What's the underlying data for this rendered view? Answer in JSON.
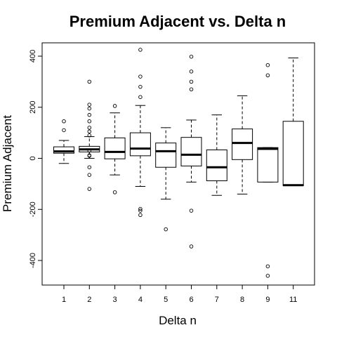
{
  "chart_data": {
    "type": "boxplot",
    "title": "Premium Adjacent vs. Delta n",
    "xlabel": "Delta n",
    "ylabel": "Premium Adjacent",
    "ylim": [
      -500,
      450
    ],
    "y_ticks": [
      -400,
      -200,
      0,
      200,
      400
    ],
    "grid": false,
    "legend": "none",
    "categories": [
      "1",
      "2",
      "3",
      "4",
      "5",
      "6",
      "7",
      "8",
      "9",
      "11"
    ],
    "boxes": [
      {
        "category": "1",
        "lower_whisker": -20,
        "q1": 20,
        "median": 27,
        "q3": 45,
        "upper_whisker": 70,
        "outliers": [
          110,
          145
        ]
      },
      {
        "category": "2",
        "lower_whisker": 0,
        "q1": 25,
        "median": 35,
        "q3": 47,
        "upper_whisker": 85,
        "outliers": [
          300,
          210,
          195,
          170,
          145,
          120,
          105,
          90,
          30,
          12,
          10,
          -35,
          -65,
          -120
        ]
      },
      {
        "category": "3",
        "lower_whisker": -65,
        "q1": -2,
        "median": 25,
        "q3": 80,
        "upper_whisker": 178,
        "outliers": [
          205,
          -133
        ]
      },
      {
        "category": "4",
        "lower_whisker": -110,
        "q1": 10,
        "median": 38,
        "q3": 100,
        "upper_whisker": 207,
        "outliers": [
          425,
          320,
          280,
          240,
          -198,
          -205,
          -222
        ]
      },
      {
        "category": "5",
        "lower_whisker": -160,
        "q1": -35,
        "median": 28,
        "q3": 60,
        "upper_whisker": 120,
        "outliers": [
          -278
        ]
      },
      {
        "category": "6",
        "lower_whisker": -93,
        "q1": -30,
        "median": 14,
        "q3": 82,
        "upper_whisker": 150,
        "outliers": [
          398,
          340,
          300,
          270,
          -205,
          -345
        ]
      },
      {
        "category": "7",
        "lower_whisker": -145,
        "q1": -88,
        "median": -35,
        "q3": 33,
        "upper_whisker": 170,
        "outliers": []
      },
      {
        "category": "8",
        "lower_whisker": -140,
        "q1": -5,
        "median": 60,
        "q3": 115,
        "upper_whisker": 245,
        "outliers": []
      },
      {
        "category": "9",
        "lower_whisker": -93,
        "q1": -93,
        "median": 37,
        "q3": 42,
        "upper_whisker": 42,
        "outliers": [
          365,
          325,
          -423,
          -460
        ]
      },
      {
        "category": "11",
        "lower_whisker": -107,
        "q1": -107,
        "median": -105,
        "q3": 145,
        "upper_whisker": 393,
        "outliers": []
      }
    ],
    "colors": {
      "box_fill": "#ffffff",
      "stroke": "#000000",
      "background": "#ffffff"
    }
  }
}
